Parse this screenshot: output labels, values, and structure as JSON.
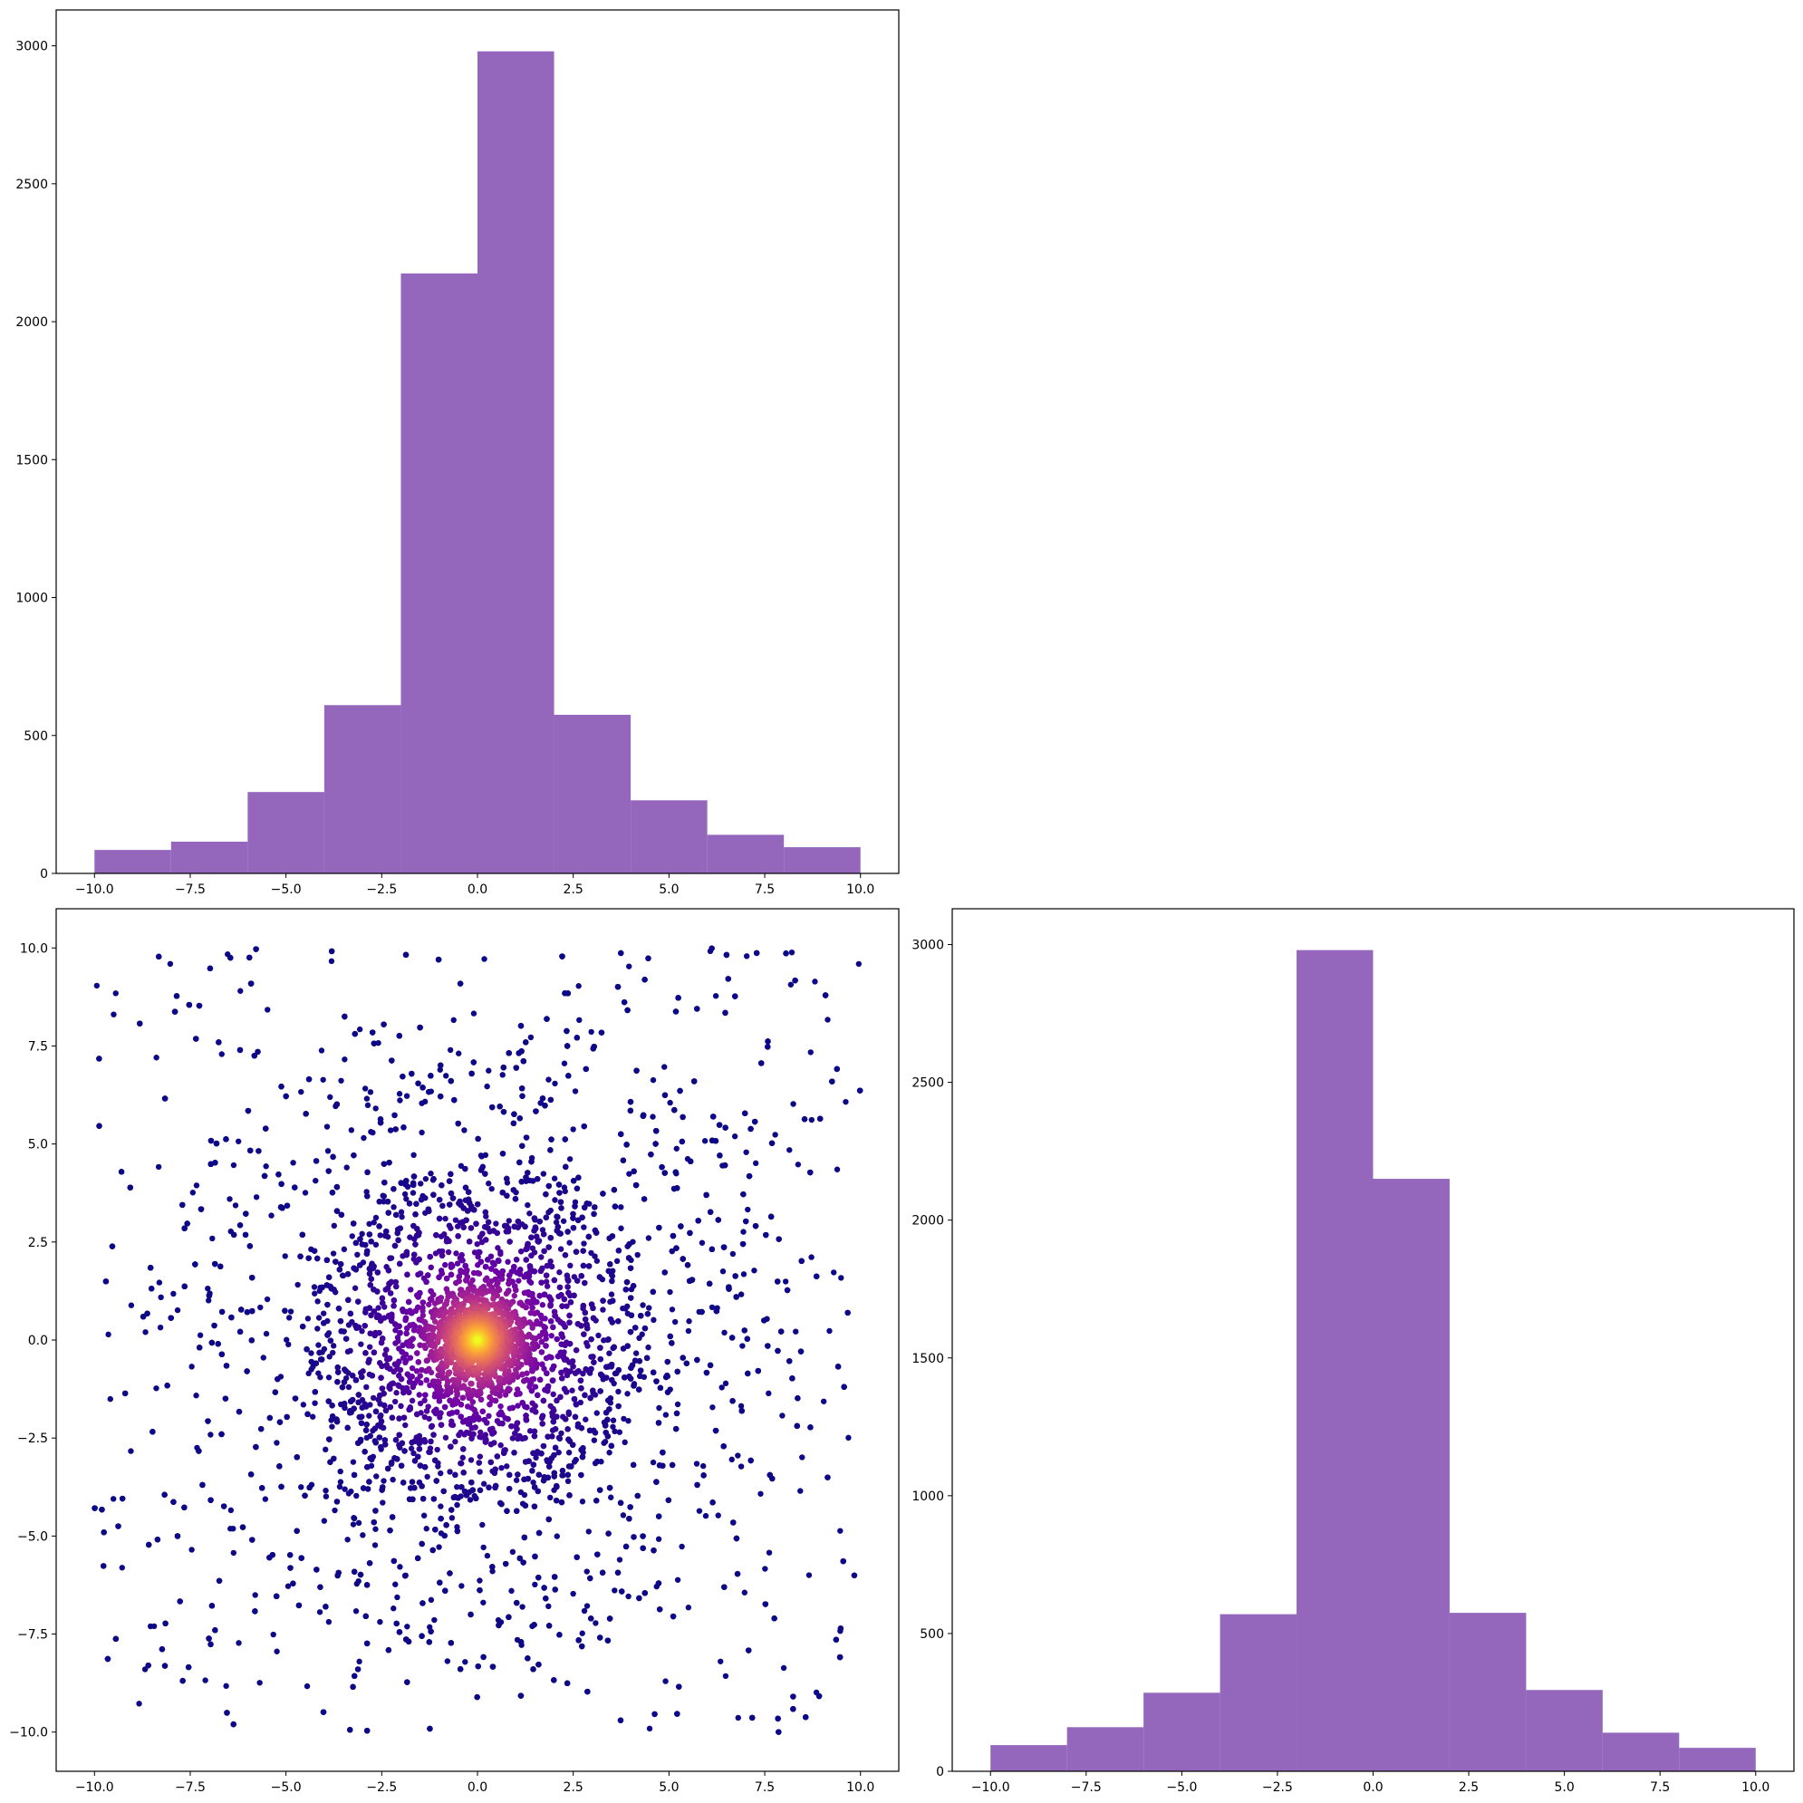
{
  "chart_data": [
    {
      "type": "bar",
      "panel": "top-left",
      "title": "",
      "xlabel": "",
      "ylabel": "",
      "bin_edges": [
        -10,
        -8,
        -6,
        -4,
        -2,
        0,
        2,
        4,
        6,
        8,
        10
      ],
      "values": [
        85,
        115,
        295,
        610,
        2175,
        2980,
        575,
        265,
        140,
        95
      ],
      "xlim": [
        -11,
        11
      ],
      "ylim": [
        0,
        3130
      ],
      "xticks": [
        -10.0,
        -7.5,
        -5.0,
        -2.5,
        0.0,
        2.5,
        5.0,
        7.5,
        10.0
      ],
      "xtick_labels": [
        "−10.0",
        "−7.5",
        "−5.0",
        "−2.5",
        "0.0",
        "2.5",
        "5.0",
        "7.5",
        "10.0"
      ],
      "yticks": [
        0,
        500,
        1000,
        1500,
        2000,
        2500,
        3000
      ],
      "ytick_labels": [
        "0",
        "500",
        "1000",
        "1500",
        "2000",
        "2500",
        "3000"
      ],
      "color": "#9467bd",
      "grid": false
    },
    {
      "type": "scatter",
      "panel": "bottom-left",
      "title": "",
      "xlabel": "",
      "ylabel": "",
      "n_points": 10000,
      "x_range": [
        -10,
        10
      ],
      "y_range": [
        -10,
        10
      ],
      "color_by": "density",
      "colormap": "plasma",
      "colormap_stops": [
        "#0d0887",
        "#6a00a8",
        "#b12a90",
        "#e16462",
        "#fca636",
        "#f0f921"
      ],
      "xlim": [
        -11,
        11
      ],
      "ylim": [
        -11,
        11
      ],
      "xticks": [
        -10.0,
        -7.5,
        -5.0,
        -2.5,
        0.0,
        2.5,
        5.0,
        7.5,
        10.0
      ],
      "xtick_labels": [
        "−10.0",
        "−7.5",
        "−5.0",
        "−2.5",
        "0.0",
        "2.5",
        "5.0",
        "7.5",
        "10.0"
      ],
      "yticks": [
        -10.0,
        -7.5,
        -5.0,
        -2.5,
        0.0,
        2.5,
        5.0,
        7.5,
        10.0
      ],
      "ytick_labels": [
        "−10.0",
        "−7.5",
        "−5.0",
        "−2.5",
        "0.0",
        "2.5",
        "5.0",
        "7.5",
        "10.0"
      ],
      "grid": false
    },
    {
      "type": "bar",
      "panel": "bottom-right",
      "title": "",
      "xlabel": "",
      "ylabel": "",
      "bin_edges": [
        -10,
        -8,
        -6,
        -4,
        -2,
        0,
        2,
        4,
        6,
        8,
        10
      ],
      "values": [
        95,
        160,
        285,
        570,
        2980,
        2150,
        575,
        295,
        140,
        85
      ],
      "xlim": [
        -11,
        11
      ],
      "ylim": [
        0,
        3130
      ],
      "xticks": [
        -10.0,
        -7.5,
        -5.0,
        -2.5,
        0.0,
        2.5,
        5.0,
        7.5,
        10.0
      ],
      "xtick_labels": [
        "−10.0",
        "−7.5",
        "−5.0",
        "−2.5",
        "0.0",
        "2.5",
        "5.0",
        "7.5",
        "10.0"
      ],
      "yticks": [
        0,
        500,
        1000,
        1500,
        2000,
        2500,
        3000
      ],
      "ytick_labels": [
        "0",
        "500",
        "1000",
        "1500",
        "2000",
        "2500",
        "3000"
      ],
      "color": "#9467bd",
      "grid": false
    }
  ]
}
